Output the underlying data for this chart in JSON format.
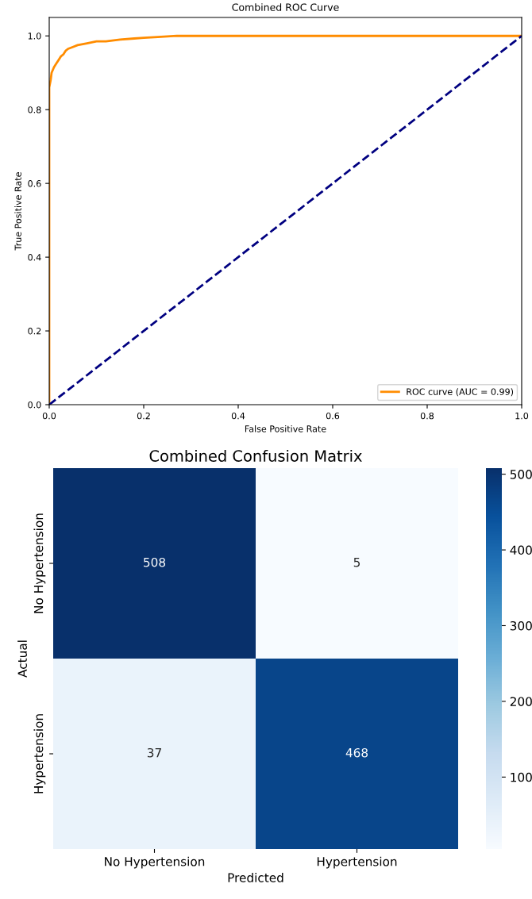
{
  "chart_data": [
    {
      "type": "line",
      "title": "Combined ROC Curve",
      "xlabel": "False Positive Rate",
      "ylabel": "True Positive Rate",
      "series": [
        {
          "name": "ROC curve (AUC = 0.99)",
          "color": "#ff8c00",
          "line_style": "solid",
          "x": [
            0,
            0,
            0,
            0.003,
            0.005,
            0.01,
            0.015,
            0.02,
            0.025,
            0.03,
            0.035,
            0.04,
            0.05,
            0.06,
            0.08,
            0.1,
            0.12,
            0.15,
            0.18,
            0.2,
            0.23,
            0.27,
            1.0
          ],
          "values": [
            0,
            0.8,
            0.86,
            0.88,
            0.9,
            0.915,
            0.925,
            0.935,
            0.945,
            0.95,
            0.96,
            0.965,
            0.97,
            0.975,
            0.98,
            0.985,
            0.985,
            0.99,
            0.993,
            0.995,
            0.997,
            1.0,
            1.0
          ]
        },
        {
          "color": "#000080",
          "line_style": "dashed",
          "x": [
            0,
            1
          ],
          "values": [
            0,
            1
          ]
        }
      ],
      "xlim": [
        0,
        1
      ],
      "ylim": [
        0,
        1.05
      ],
      "xticks": [
        {
          "value": 0,
          "label": "0.0"
        },
        0.2,
        0.4,
        0.6,
        0.8,
        {
          "value": 1,
          "label": "1.0"
        }
      ],
      "yticks": [
        {
          "value": 0,
          "label": "0.0"
        },
        0.2,
        0.4,
        0.6,
        0.8,
        {
          "value": 1,
          "label": "1.0"
        }
      ],
      "legend": "bottom right",
      "grid": false
    },
    {
      "type": "heatmap",
      "title": "Combined Confusion Matrix",
      "xlabel": "Predicted",
      "ylabel": "Actual",
      "categories": [
        "No Hypertension",
        "Hypertension"
      ],
      "y_categories": [
        "No Hypertension",
        "Hypertension"
      ],
      "cells": [
        [
          508,
          5
        ],
        [
          37,
          468
        ]
      ],
      "data_labels": true,
      "clim": [
        5,
        508
      ],
      "cticks": [
        100,
        200,
        300,
        400,
        500
      ]
    }
  ]
}
